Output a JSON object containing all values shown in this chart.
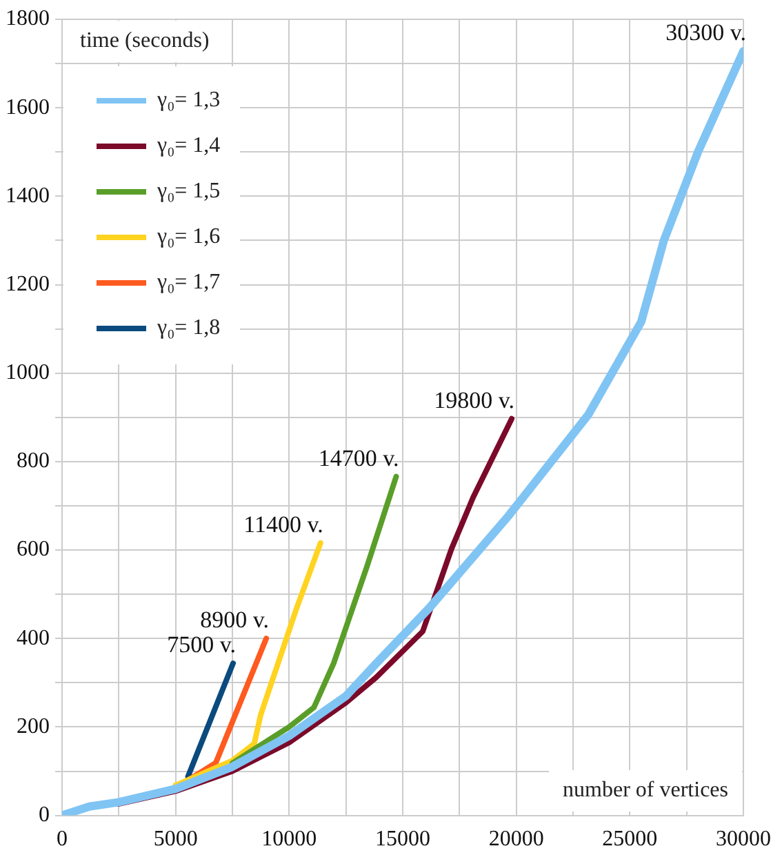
{
  "chart_data": {
    "type": "line",
    "xlabel": "number of vertices",
    "ylabel": "time (seconds)",
    "xlim": [
      0,
      30000
    ],
    "ylim": [
      0,
      1800
    ],
    "xticks": [
      0,
      {
        "value": 2500,
        "label": null
      },
      5000,
      {
        "value": 7500,
        "label": null
      },
      10000,
      {
        "value": 12500,
        "label": null
      },
      15000,
      {
        "value": 17500,
        "label": null
      },
      20000,
      {
        "value": 22500,
        "label": null
      },
      25000,
      {
        "value": 27500,
        "label": null
      },
      30000
    ],
    "yticks": [
      0,
      {
        "value": 100,
        "label": null
      },
      200,
      {
        "value": 300,
        "label": null
      },
      400,
      {
        "value": 500,
        "label": null
      },
      600,
      {
        "value": 700,
        "label": null
      },
      800,
      {
        "value": 900,
        "label": null
      },
      1000,
      {
        "value": 1100,
        "label": null
      },
      1200,
      {
        "value": 1300,
        "label": null
      },
      1400,
      {
        "value": 1500,
        "label": null
      },
      1600,
      {
        "value": 1700,
        "label": null
      },
      1800
    ],
    "grid": true,
    "legend": "top left",
    "marker": "none",
    "line_style": "solid",
    "series": [
      {
        "name": "γ₀= 1,3",
        "color": "#80c4f4",
        "x": [
          0,
          1200,
          2500,
          5000,
          7500,
          10000,
          12500,
          13840,
          16170,
          19670,
          23170,
          25500,
          26500,
          28000,
          30000
        ],
        "values": [
          0,
          20,
          30,
          60,
          110,
          180,
          270,
          344,
          469,
          678,
          906,
          1116,
          1300,
          1500,
          1728
        ]
      },
      {
        "name": "γ₀= 1,4",
        "color": "#7b0a2a",
        "x": [
          2500,
          5000,
          7500,
          10000,
          12500,
          13830,
          15880,
          17150,
          18100,
          19800
        ],
        "values": [
          26,
          55,
          100,
          165,
          255,
          312,
          416,
          603,
          719,
          897
        ]
      },
      {
        "name": "γ₀= 1,5",
        "color": "#5a9e2a",
        "x": [
          7500,
          10000,
          11090,
          11960,
          13420,
          14710
        ],
        "values": [
          118,
          200,
          244,
          344,
          562,
          766
        ]
      },
      {
        "name": "γ₀= 1,6",
        "color": "#ffd320",
        "x": [
          5000,
          7500,
          8460,
          8750,
          10330,
          11380
        ],
        "values": [
          68,
          124,
          162,
          228,
          469,
          616
        ]
      },
      {
        "name": "γ₀= 1,7",
        "color": "#ff5a1f",
        "x": [
          5500,
          6770,
          8990
        ],
        "values": [
          78,
          119,
          400
        ]
      },
      {
        "name": "γ₀= 1,8",
        "color": "#0b4a7e",
        "x": [
          5545,
          7530
        ],
        "values": [
          88,
          344
        ]
      }
    ],
    "annotations": [
      {
        "text": "30300 v.",
        "x": 30000,
        "y": 1728
      },
      {
        "text": "19800 v.",
        "x": 19800,
        "y": 897
      },
      {
        "text": "14700 v.",
        "x": 14710,
        "y": 766
      },
      {
        "text": "11400 v.",
        "x": 11380,
        "y": 616
      },
      {
        "text": "8900 v.",
        "x": 8990,
        "y": 400
      },
      {
        "text": "7500 v.",
        "x": 7530,
        "y": 344
      }
    ]
  }
}
